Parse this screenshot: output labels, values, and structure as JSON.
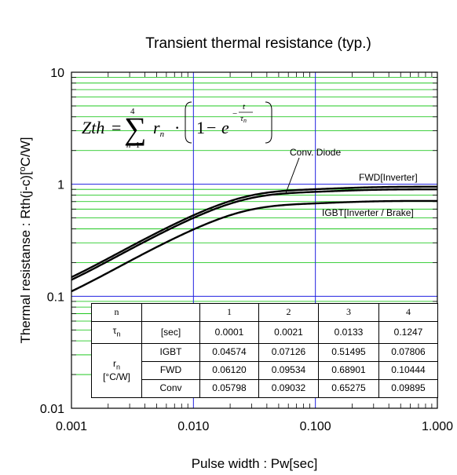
{
  "chart_data": {
    "type": "line",
    "title": "Transient thermal resistance (typ.)",
    "xlabel": "Pulse width : Pw[sec]",
    "ylabel": "Thermal resistanse : Rth(j-c)[°C/W]",
    "x_scale": "log",
    "y_scale": "log",
    "xlim": [
      0.001,
      1
    ],
    "ylim": [
      0.01,
      10
    ],
    "x_ticks": [
      "0.001",
      "0.010",
      "0.100",
      "1.000"
    ],
    "y_ticks": [
      "0.01",
      "0.1",
      "1",
      "10"
    ],
    "grid": true,
    "formula": "Zth = Σ(n=1..4) rn · (1 − e^(−t/τn))",
    "series": [
      {
        "name": "FWD[Inverter]",
        "tau": [
          0.0001,
          0.0021,
          0.0133,
          0.1247
        ],
        "r": [
          0.0612,
          0.09534,
          0.68901,
          0.10444
        ]
      },
      {
        "name": "IGBT[Inverter / Brake]",
        "tau": [
          0.0001,
          0.0021,
          0.0133,
          0.1247
        ],
        "r": [
          0.04574,
          0.07126,
          0.51495,
          0.07806
        ]
      },
      {
        "name": "Conv. Diode",
        "tau": [
          0.0001,
          0.0021,
          0.0133,
          0.1247
        ],
        "r": [
          0.05798,
          0.09032,
          0.65275,
          0.09895
        ]
      }
    ],
    "table": {
      "header": [
        "n",
        "",
        "1",
        "2",
        "3",
        "4"
      ],
      "tau_label": "τn",
      "tau_unit": "[sec]",
      "tau_values": [
        "0.0001",
        "0.0021",
        "0.0133",
        "0.1247"
      ],
      "r_label": "rn",
      "r_unit": "[°C/W]",
      "rows": [
        {
          "label": "IGBT",
          "values": [
            "0.04574",
            "0.07126",
            "0.51495",
            "0.07806"
          ]
        },
        {
          "label": "FWD",
          "values": [
            "0.06120",
            "0.09534",
            "0.68901",
            "0.10444"
          ]
        },
        {
          "label": "Conv",
          "values": [
            "0.05798",
            "0.09032",
            "0.65275",
            "0.09895"
          ]
        }
      ]
    }
  }
}
